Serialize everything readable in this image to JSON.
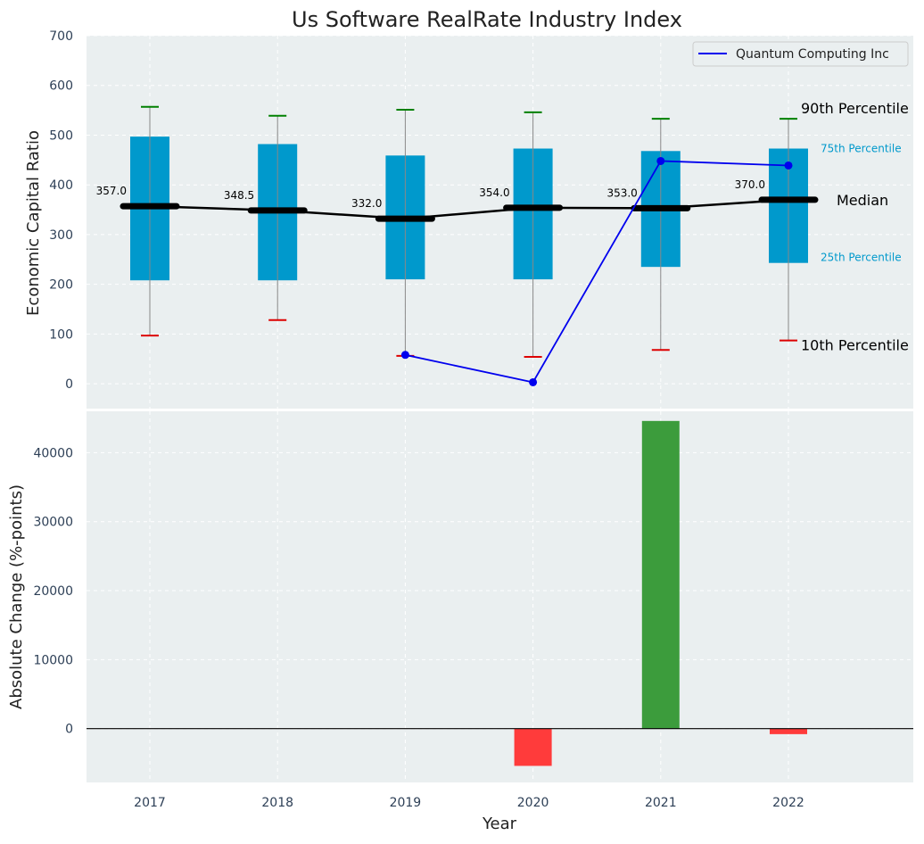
{
  "colors": {
    "plot_bg": "#eaeff0",
    "grid": "#ffffff",
    "box": "#0099cc",
    "whisker": "#888888",
    "p90_cap": "#008000",
    "p10_cap": "#dd0000",
    "median": "#000000",
    "company": "#0000ee",
    "bar_pos": "#3c9c3c",
    "bar_neg": "#ff3b3b",
    "tick_text": "#2e4057",
    "label_25_75": "#0099cc"
  },
  "chart_data": [
    {
      "type": "box",
      "title": "Us Software RealRate Industry Index",
      "xlabel": "",
      "ylabel": "Economic Capital Ratio",
      "ylim": [
        -50,
        700
      ],
      "yticks": [
        0,
        100,
        200,
        300,
        400,
        500,
        600,
        700
      ],
      "grid": true,
      "categories": [
        "2017",
        "2018",
        "2019",
        "2020",
        "2021",
        "2022"
      ],
      "p10": [
        97,
        128,
        56,
        54,
        68,
        87
      ],
      "p25": [
        208,
        208,
        210,
        210,
        235,
        243
      ],
      "median": [
        357.0,
        348.5,
        332.0,
        354.0,
        353.0,
        370.0
      ],
      "p75": [
        497,
        482,
        459,
        473,
        468,
        473
      ],
      "p90": [
        557,
        539,
        551,
        546,
        533,
        533
      ],
      "median_labels": [
        "357.0",
        "348.5",
        "332.0",
        "354.0",
        "353.0",
        "370.0"
      ],
      "series": [
        {
          "name": "Quantum Computing Inc",
          "x": [
            "2019",
            "2020",
            "2021",
            "2022"
          ],
          "values": [
            58,
            3,
            448,
            439
          ]
        }
      ],
      "legend": {
        "position": "top-right",
        "entries": [
          "Quantum Computing Inc"
        ]
      },
      "annotations": {
        "p90": "90th Percentile",
        "p75": "75th Percentile",
        "median": "Median",
        "p25": "25th Percentile",
        "p10": "10th Percentile"
      }
    },
    {
      "type": "bar",
      "xlabel": "Year",
      "ylabel": "Absolute Change (%-points)",
      "ylim": [
        -7800,
        46000
      ],
      "yticks": [
        0,
        10000,
        20000,
        30000,
        40000
      ],
      "grid": true,
      "categories": [
        "2017",
        "2018",
        "2019",
        "2020",
        "2021",
        "2022"
      ],
      "values": [
        null,
        null,
        null,
        -5400,
        44600,
        -800
      ]
    }
  ]
}
